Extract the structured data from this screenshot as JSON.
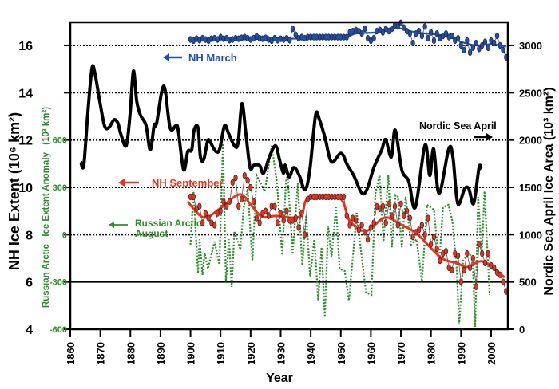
{
  "chart_data": {
    "type": "line",
    "xlabel": "Year",
    "xlim": [
      1860,
      2005
    ],
    "xticks": [
      "1860",
      "1870",
      "1880",
      "1890",
      "1900",
      "1910",
      "1920",
      "1930",
      "1940",
      "1950",
      "1960",
      "1970",
      "1980",
      "1990",
      "2000"
    ],
    "grid": "dotted horizontal lines",
    "axes": {
      "left": {
        "label": "NH Ice Extent (10⁶ km²)",
        "ylim": [
          4,
          17
        ],
        "ticks": [
          "4",
          "6",
          "8",
          "10",
          "12",
          "14",
          "16"
        ],
        "color": "#000000"
      },
      "left_inner": {
        "label_part1": "Russian Arctic",
        "label_part2": "Ice Extent Anomaly",
        "label_part3": "(10³ km²)",
        "ylim": [
          -600,
          600
        ],
        "ticks": [
          "-600",
          "-300",
          "0",
          "300",
          "600"
        ],
        "color": "#2e8b2e"
      },
      "right": {
        "label": "Nordic Sea April Ice Area (10³ km²)",
        "ylim": [
          0,
          3000
        ],
        "ticks": [
          "0",
          "500",
          "1000",
          "1500",
          "2000",
          "2500",
          "3000"
        ],
        "color": "#000000"
      }
    },
    "series": [
      {
        "name": "NH March",
        "axis": "left",
        "color": "#1f4fb0",
        "style": "annual points + smooth",
        "years_start": 1900,
        "values": [
          16.25,
          16.2,
          16.28,
          16.22,
          16.3,
          16.25,
          16.2,
          16.28,
          16.3,
          16.25,
          16.35,
          16.28,
          16.3,
          16.22,
          16.25,
          16.3,
          16.28,
          16.32,
          16.35,
          16.3,
          16.25,
          16.3,
          16.38,
          16.3,
          16.28,
          16.32,
          16.25,
          16.2,
          16.3,
          16.22,
          16.28,
          16.25,
          16.3,
          16.22,
          16.7,
          16.45,
          16.3,
          16.35,
          16.3,
          16.35,
          16.35,
          16.35,
          16.35,
          16.35,
          16.35,
          16.35,
          16.35,
          16.35,
          16.35,
          16.35,
          16.35,
          16.35,
          16.35,
          16.55,
          16.6,
          16.65,
          16.6,
          16.5,
          16.7,
          16.3,
          16.2,
          16.3,
          16.6,
          16.65,
          16.55,
          16.7,
          16.6,
          16.7,
          16.85,
          16.8,
          16.95,
          16.75,
          16.6,
          16.5,
          16.1,
          16.5,
          16.6,
          16.4,
          16.8,
          16.3,
          16.55,
          16.2,
          16.5,
          16.3,
          16.4,
          16.5,
          16.35,
          16.4,
          16.2,
          16.3,
          16.0,
          15.8,
          16.2,
          15.7,
          15.9,
          16.1,
          15.85,
          16.0,
          16.15,
          15.9,
          16.2,
          16.1,
          16.4,
          16.0,
          15.8,
          15.5
        ],
        "smooth": [
          [
            1900,
            16.25
          ],
          [
            1930,
            16.28
          ],
          [
            1950,
            16.33
          ],
          [
            1955,
            16.5
          ],
          [
            1962,
            16.55
          ],
          [
            1968,
            16.75
          ],
          [
            1975,
            16.55
          ],
          [
            1985,
            16.4
          ],
          [
            1990,
            16.15
          ],
          [
            1995,
            16.0
          ],
          [
            2000,
            16.05
          ],
          [
            2005,
            15.95
          ]
        ]
      },
      {
        "name": "NH September",
        "axis": "left",
        "color": "#e8321e",
        "style": "annual points + smooth",
        "years_start": 1900,
        "values": [
          9.6,
          9.6,
          9.1,
          9.2,
          8.5,
          8.9,
          8.7,
          8.5,
          8.4,
          8.9,
          9.0,
          9.4,
          9.2,
          9.4,
          10.2,
          10.4,
          9.2,
          9.5,
          10.5,
          10.3,
          10.0,
          9.4,
          8.7,
          8.5,
          8.9,
          9.0,
          8.8,
          9.2,
          9.2,
          8.5,
          8.9,
          8.6,
          9.0,
          8.6,
          8.6,
          8.7,
          8.3,
          8.9,
          8.0,
          9.5,
          9.6,
          9.6,
          9.6,
          9.6,
          9.6,
          9.6,
          9.6,
          9.6,
          9.6,
          9.6,
          9.6,
          9.6,
          8.8,
          8.4,
          8.7,
          8.6,
          8.2,
          8.4,
          8.1,
          7.8,
          8.3,
          8.5,
          9.2,
          9.1,
          9.2,
          8.5,
          9.3,
          8.8,
          9.2,
          8.4,
          9.3,
          8.8,
          9.0,
          8.7,
          7.9,
          8.1,
          8.2,
          8.4,
          8.0,
          8.7,
          7.6,
          7.9,
          7.4,
          6.9,
          7.2,
          7.3,
          6.6,
          6.5,
          7.2,
          7.1,
          6.0,
          6.5,
          7.2,
          6.6,
          7.0,
          5.8,
          7.6,
          7.2,
          6.8,
          7.2,
          6.7,
          6.6,
          6.4,
          6.3,
          6.0,
          5.6
        ],
        "smooth": [
          [
            1899.1,
            9.39
          ],
          [
            1904.4,
            8.72
          ],
          [
            1909.7,
            9.09
          ],
          [
            1916.3,
            9.7
          ],
          [
            1920.3,
            9.22
          ],
          [
            1923.8,
            8.75
          ],
          [
            1928.3,
            8.79
          ],
          [
            1933.6,
            8.72
          ],
          [
            1937,
            8.82
          ],
          [
            1939.4,
            9.56
          ],
          [
            1949.5,
            9.56
          ],
          [
            1953,
            8.58
          ],
          [
            1958.3,
            8.15
          ],
          [
            1964.7,
            8.72
          ],
          [
            1970,
            8.42
          ],
          [
            1975.3,
            8.04
          ],
          [
            1983.3,
            7.03
          ],
          [
            1988.6,
            6.8
          ],
          [
            1992,
            6.63
          ],
          [
            1997.4,
            6.86
          ],
          [
            2004.5,
            6.19
          ]
        ]
      },
      {
        "name": "Russian Arctic August",
        "axis": "left_inner",
        "color": "#2e8b2e",
        "style": "dotted",
        "points": [
          [
            1900,
            -64
          ],
          [
            1901,
            275
          ],
          [
            1902.5,
            -246
          ],
          [
            1903,
            -30
          ],
          [
            1904,
            -256
          ],
          [
            1904.7,
            -115
          ],
          [
            1905.8,
            -216
          ],
          [
            1908,
            -44
          ],
          [
            1909.6,
            -190
          ],
          [
            1910.8,
            578
          ],
          [
            1911.8,
            -297
          ],
          [
            1912.8,
            -30
          ],
          [
            1913.7,
            -332
          ],
          [
            1914.6,
            22
          ],
          [
            1916.6,
            -95
          ],
          [
            1917.7,
            173
          ],
          [
            1919,
            290
          ],
          [
            1920.6,
            -165
          ],
          [
            1922,
            376
          ],
          [
            1924.7,
            275
          ],
          [
            1927,
            563
          ],
          [
            1928.7,
            340
          ],
          [
            1930.5,
            -130
          ],
          [
            1931.8,
            340
          ],
          [
            1932.3,
            376
          ],
          [
            1934,
            -115
          ],
          [
            1935.7,
            325
          ],
          [
            1937.2,
            -196
          ],
          [
            1938.5,
            123
          ],
          [
            1939.8,
            -266
          ],
          [
            1941.2,
            -30
          ],
          [
            1942.5,
            -418
          ],
          [
            1943.6,
            -80
          ],
          [
            1944.7,
            -524
          ],
          [
            1945.8,
            57
          ],
          [
            1946.9,
            -145
          ],
          [
            1948.4,
            173
          ],
          [
            1949.6,
            -216
          ],
          [
            1951.3,
            -231
          ],
          [
            1952.7,
            -418
          ],
          [
            1954,
            -145
          ],
          [
            1955.3,
            138
          ],
          [
            1957.1,
            -165
          ],
          [
            1958.4,
            -367
          ],
          [
            1960.2,
            -382
          ],
          [
            1961.5,
            260
          ],
          [
            1962.9,
            376
          ],
          [
            1964.2,
            -44
          ],
          [
            1965.8,
            376
          ],
          [
            1967,
            -80
          ],
          [
            1968.2,
            250
          ],
          [
            1969,
            240
          ],
          [
            1970.3,
            -80
          ],
          [
            1971.6,
            240
          ],
          [
            1973.4,
            -64
          ],
          [
            1975.2,
            -30
          ],
          [
            1977,
            -297
          ],
          [
            1978.7,
            189
          ],
          [
            1981,
            158
          ],
          [
            1982.7,
            -196
          ],
          [
            1984,
            173
          ],
          [
            1985.8,
            189
          ],
          [
            1987.1,
            88
          ],
          [
            1988.5,
            -196
          ],
          [
            1989.4,
            -570
          ],
          [
            1990.7,
            -165
          ],
          [
            1992.2,
            -130
          ],
          [
            1993.8,
            -130
          ],
          [
            1994.7,
            -585
          ],
          [
            1995.7,
            240
          ],
          [
            1996.9,
            -130
          ],
          [
            1997.8,
            275
          ],
          [
            1999.5,
            -382
          ]
        ]
      },
      {
        "name": "Nordic Sea April",
        "axis": "right",
        "color": "#000000",
        "style": "thick line",
        "points": [
          [
            1863.5,
            1770
          ],
          [
            1864.5,
            1735
          ],
          [
            1865.8,
            2275
          ],
          [
            1867.2,
            2755
          ],
          [
            1868.2,
            2705
          ],
          [
            1869.8,
            2410
          ],
          [
            1871.4,
            2150
          ],
          [
            1872.8,
            2130
          ],
          [
            1874.6,
            2215
          ],
          [
            1875.9,
            2175
          ],
          [
            1876.7,
            2075
          ],
          [
            1878.6,
            1940
          ],
          [
            1879.9,
            2275
          ],
          [
            1881,
            2730
          ],
          [
            1882.1,
            2410
          ],
          [
            1883.4,
            2260
          ],
          [
            1885.2,
            2155
          ],
          [
            1886.6,
            1895
          ],
          [
            1887.9,
            2155
          ],
          [
            1888.7,
            2175
          ],
          [
            1891.1,
            2570
          ],
          [
            1893.2,
            2130
          ],
          [
            1895.1,
            2150
          ],
          [
            1895.9,
            2105
          ],
          [
            1897.7,
            1685
          ],
          [
            1899.1,
            1880
          ],
          [
            1900.4,
            1895
          ],
          [
            1901.2,
            2105
          ],
          [
            1902.5,
            2130
          ],
          [
            1903.3,
            1820
          ],
          [
            1904.4,
            1795
          ],
          [
            1905.7,
            1990
          ],
          [
            1906.5,
            1980
          ],
          [
            1908.4,
            1880
          ],
          [
            1909.7,
            1905
          ],
          [
            1911.3,
            2150
          ],
          [
            1912.6,
            2075
          ],
          [
            1914.5,
            1945
          ],
          [
            1915.8,
            1965
          ],
          [
            1917.1,
            2385
          ],
          [
            1918.4,
            2075
          ],
          [
            1919.8,
            1710
          ],
          [
            1921.1,
            1735
          ],
          [
            1923,
            1730
          ],
          [
            1924.3,
            1650
          ],
          [
            1926.4,
            1835
          ],
          [
            1928.3,
            1940
          ],
          [
            1929.6,
            1795
          ],
          [
            1930.9,
            1650
          ],
          [
            1931.5,
            1735
          ],
          [
            1932.8,
            1610
          ],
          [
            1934.4,
            1710
          ],
          [
            1936.2,
            1625
          ],
          [
            1938.1,
            1475
          ],
          [
            1939.7,
            1685
          ],
          [
            1941.6,
            2260
          ],
          [
            1942.9,
            2215
          ],
          [
            1944.8,
            2020
          ],
          [
            1946.9,
            1770
          ],
          [
            1950.1,
            1860
          ],
          [
            1952.2,
            1735
          ],
          [
            1954.3,
            1625
          ],
          [
            1957,
            1440
          ],
          [
            1958.8,
            1485
          ],
          [
            1961,
            1710
          ],
          [
            1963.6,
            1895
          ],
          [
            1964.9,
            2005
          ],
          [
            1966.8,
            1820
          ],
          [
            1968.1,
            2105
          ],
          [
            1970.3,
            1685
          ],
          [
            1972.6,
            1565
          ],
          [
            1974.8,
            1290
          ],
          [
            1978,
            1945
          ],
          [
            1979.6,
            1625
          ],
          [
            1980.9,
            1905
          ],
          [
            1982.7,
            1435
          ],
          [
            1985.9,
            1905
          ],
          [
            1987.3,
            1820
          ],
          [
            1988.9,
            1330
          ],
          [
            1991.2,
            1485
          ],
          [
            1992.6,
            1485
          ],
          [
            1994.2,
            1330
          ],
          [
            1996,
            1710
          ],
          [
            1996.8,
            1695
          ]
        ]
      }
    ],
    "annotations": {
      "nh_march": {
        "text": "NH March",
        "arrow": "left"
      },
      "nh_september": {
        "text": "NH September",
        "arrow": "left"
      },
      "russian_arctic_1": {
        "text": "Russian Arctic",
        "arrow": "left"
      },
      "russian_arctic_2": {
        "text": "August"
      },
      "nordic_sea": {
        "text": "Nordic Sea April",
        "arrow": "right"
      }
    }
  }
}
